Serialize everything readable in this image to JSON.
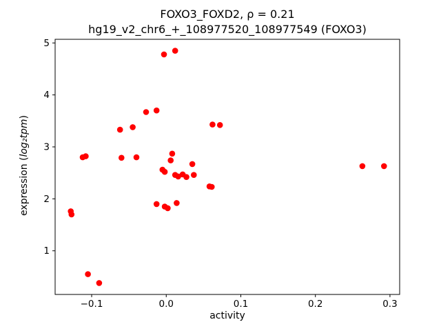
{
  "chart_data": {
    "type": "scatter",
    "title_line1": "FOXO3_FOXD2, ρ = 0.21",
    "title_line2": "hg19_v2_chr6_+_108977520_108977549 (FOXO3)",
    "xlabel": "activity",
    "ylabel_prefix": "expression (",
    "ylabel_math": "log₂tpm",
    "ylabel_suffix": ")",
    "marker_color": "#ff0000",
    "axis_color": "#000000",
    "background_color": "#ffffff",
    "grid": false,
    "legend": "none",
    "xlim": [
      -0.149,
      0.313
    ],
    "ylim": [
      0.16,
      5.07
    ],
    "xticks": [
      {
        "value": -0.1,
        "label": "−0.1"
      },
      {
        "value": 0.0,
        "label": "0.0"
      },
      {
        "value": 0.1,
        "label": "0.1"
      },
      {
        "value": 0.2,
        "label": "0.2"
      },
      {
        "value": 0.3,
        "label": "0.3"
      }
    ],
    "yticks": [
      {
        "value": 1,
        "label": "1"
      },
      {
        "value": 2,
        "label": "2"
      },
      {
        "value": 3,
        "label": "3"
      },
      {
        "value": 4,
        "label": "4"
      },
      {
        "value": 5,
        "label": "5"
      }
    ],
    "points": [
      [
        -0.128,
        1.76
      ],
      [
        -0.127,
        1.7
      ],
      [
        -0.112,
        2.8
      ],
      [
        -0.108,
        2.82
      ],
      [
        -0.105,
        0.55
      ],
      [
        -0.09,
        0.38
      ],
      [
        -0.062,
        3.33
      ],
      [
        -0.06,
        2.79
      ],
      [
        -0.045,
        3.38
      ],
      [
        -0.04,
        2.8
      ],
      [
        -0.027,
        3.67
      ],
      [
        -0.013,
        3.7
      ],
      [
        -0.013,
        1.9
      ],
      [
        -0.005,
        2.56
      ],
      [
        -0.002,
        2.52
      ],
      [
        -0.003,
        4.78
      ],
      [
        -0.002,
        1.85
      ],
      [
        0.002,
        1.82
      ],
      [
        0.006,
        2.74
      ],
      [
        0.008,
        2.87
      ],
      [
        0.012,
        4.85
      ],
      [
        0.012,
        2.46
      ],
      [
        0.016,
        2.43
      ],
      [
        0.014,
        1.92
      ],
      [
        0.022,
        2.47
      ],
      [
        0.027,
        2.42
      ],
      [
        0.035,
        2.67
      ],
      [
        0.037,
        2.46
      ],
      [
        0.058,
        2.24
      ],
      [
        0.061,
        2.23
      ],
      [
        0.062,
        3.43
      ],
      [
        0.072,
        3.42
      ],
      [
        0.263,
        2.63
      ],
      [
        0.292,
        2.63
      ]
    ]
  }
}
